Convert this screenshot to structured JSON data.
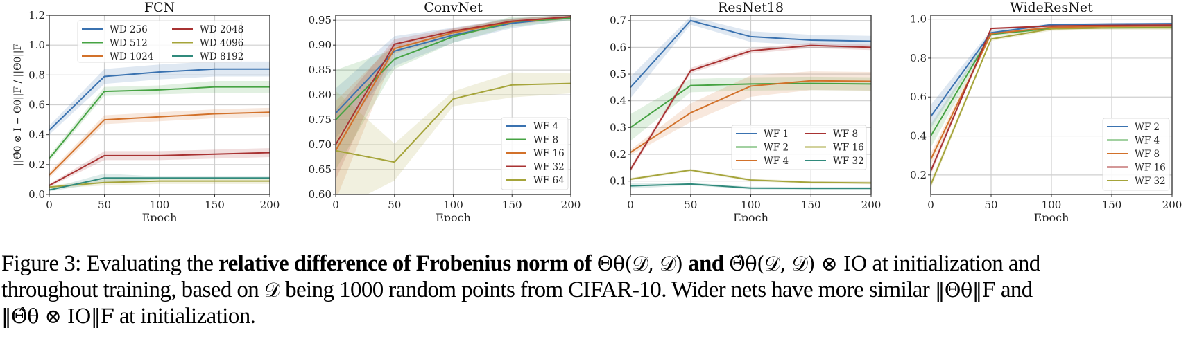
{
  "figure": {
    "caption": {
      "label": "Figure 3:",
      "line1_prefix": "Evaluating the",
      "line1_bold1": "relative difference of Frobenius norm of",
      "line1_math1": "Θθ(𝒟, 𝒟)",
      "line1_bold2": "and",
      "line1_math2": "Θ̂θ(𝒟, 𝒟) ⊗ IO",
      "line1_suffix": "at initialization and",
      "line2_prefix": "throughout training, based on",
      "line2_math1": "𝒟",
      "line2_middle": "being 1000 random points from CIFAR-10.  Wider nets have more similar",
      "line2_math2": "‖Θθ‖F",
      "line2_suffix": "and",
      "line3_math": "‖Θ̂θ ⊗ IO‖F",
      "line3_suffix": "at initialization."
    }
  },
  "chart_data": [
    {
      "type": "line",
      "title": "FCN",
      "xlabel": "Epoch",
      "ylabel": "||Θ̂θ ⊗ I − Θθ||F / ||Θθ||F",
      "xlim": [
        0,
        200
      ],
      "ylim": [
        0.0,
        1.2
      ],
      "xticks": [
        0,
        50,
        100,
        150,
        200
      ],
      "yticks": [
        0.0,
        0.2,
        0.4,
        0.6,
        0.8,
        1.0,
        1.2
      ],
      "ytick_labels": [
        "0.0",
        "0.2",
        "0.4",
        "0.6",
        "0.8",
        "1.0",
        "1.2"
      ],
      "grid": true,
      "legend_placement": "top-center",
      "legend_columns": 2,
      "x": [
        0,
        50,
        100,
        150,
        200
      ],
      "series": [
        {
          "name": "WD 256",
          "color": "#3a72b0",
          "values": [
            0.43,
            0.79,
            0.82,
            0.84,
            0.84
          ],
          "band": [
            0.03,
            0.05,
            0.05,
            0.05,
            0.05
          ]
        },
        {
          "name": "WD 512",
          "color": "#46a343",
          "values": [
            0.24,
            0.69,
            0.7,
            0.72,
            0.72
          ],
          "band": [
            0.02,
            0.03,
            0.03,
            0.04,
            0.04
          ]
        },
        {
          "name": "WD 1024",
          "color": "#d2712a",
          "values": [
            0.13,
            0.5,
            0.52,
            0.54,
            0.55
          ],
          "band": [
            0.02,
            0.03,
            0.03,
            0.03,
            0.03
          ]
        },
        {
          "name": "WD 2048",
          "color": "#a83232",
          "values": [
            0.06,
            0.26,
            0.26,
            0.27,
            0.28
          ],
          "band": [
            0.01,
            0.03,
            0.03,
            0.03,
            0.03
          ]
        },
        {
          "name": "WD 4096",
          "color": "#a5a43a",
          "values": [
            0.05,
            0.08,
            0.09,
            0.09,
            0.09
          ],
          "band": [
            0.01,
            0.02,
            0.02,
            0.02,
            0.02
          ]
        },
        {
          "name": "WD 8192",
          "color": "#308a7c",
          "values": [
            0.03,
            0.11,
            0.11,
            0.11,
            0.11
          ],
          "band": [
            0.01,
            0.03,
            0.01,
            0.01,
            0.01
          ]
        }
      ]
    },
    {
      "type": "line",
      "title": "ConvNet",
      "xlabel": "Epoch",
      "ylabel": "",
      "xlim": [
        0,
        200
      ],
      "ylim": [
        0.6,
        0.96
      ],
      "xticks": [
        0,
        50,
        100,
        150,
        200
      ],
      "yticks": [
        0.6,
        0.65,
        0.7,
        0.75,
        0.8,
        0.85,
        0.9,
        0.95
      ],
      "ytick_labels": [
        "0.60",
        "0.65",
        "0.70",
        "0.75",
        "0.80",
        "0.85",
        "0.90",
        "0.95"
      ],
      "grid": true,
      "legend_placement": "lower-right",
      "legend_columns": 1,
      "x": [
        0,
        50,
        100,
        150,
        200
      ],
      "series": [
        {
          "name": "WF 4",
          "color": "#3a72b0",
          "values": [
            0.763,
            0.888,
            0.92,
            0.944,
            0.956
          ],
          "band": [
            0.05,
            0.03,
            0.015,
            0.01,
            0.005
          ]
        },
        {
          "name": "WF 8",
          "color": "#46a343",
          "values": [
            0.75,
            0.872,
            0.917,
            0.947,
            0.954
          ],
          "band": [
            0.1,
            0.02,
            0.012,
            0.01,
            0.005
          ]
        },
        {
          "name": "WF 16",
          "color": "#d2712a",
          "values": [
            0.688,
            0.893,
            0.925,
            0.947,
            0.957
          ],
          "band": [
            0.1,
            0.01,
            0.008,
            0.006,
            0.004
          ]
        },
        {
          "name": "WF 32",
          "color": "#a83232",
          "values": [
            0.7,
            0.902,
            0.928,
            0.948,
            0.957
          ],
          "band": [
            0.07,
            0.01,
            0.006,
            0.005,
            0.004
          ]
        },
        {
          "name": "WF 64",
          "color": "#a5a43a",
          "values": [
            0.688,
            0.665,
            0.792,
            0.82,
            0.823
          ],
          "band": [
            0.12,
            0.037,
            0.015,
            0.025,
            0.02
          ]
        }
      ]
    },
    {
      "type": "line",
      "title": "ResNet18",
      "xlabel": "Epoch",
      "ylabel": "",
      "xlim": [
        0,
        200
      ],
      "ylim": [
        0.05,
        0.72
      ],
      "xticks": [
        0,
        50,
        100,
        150,
        200
      ],
      "yticks": [
        0.1,
        0.2,
        0.3,
        0.4,
        0.5,
        0.6,
        0.7
      ],
      "ytick_labels": [
        "0.1",
        "0.2",
        "0.3",
        "0.4",
        "0.5",
        "0.6",
        "0.7"
      ],
      "grid": true,
      "legend_placement": "lower-right",
      "legend_columns": 2,
      "x": [
        0,
        50,
        100,
        150,
        200
      ],
      "series": [
        {
          "name": "WF 1",
          "color": "#3a72b0",
          "values": [
            0.45,
            0.7,
            0.64,
            0.627,
            0.623
          ],
          "band": [
            0.04,
            0.015,
            0.02,
            0.02,
            0.02
          ]
        },
        {
          "name": "WF 2",
          "color": "#46a343",
          "values": [
            0.3,
            0.457,
            0.463,
            0.465,
            0.463
          ],
          "band": [
            0.05,
            0.025,
            0.025,
            0.025,
            0.025
          ]
        },
        {
          "name": "WF 4",
          "color": "#d2712a",
          "values": [
            0.207,
            0.355,
            0.455,
            0.475,
            0.473
          ],
          "band": [
            0.01,
            0.035,
            0.04,
            0.035,
            0.035
          ]
        },
        {
          "name": "WF 8",
          "color": "#a83232",
          "values": [
            0.143,
            0.513,
            0.587,
            0.607,
            0.6
          ],
          "band": [
            0.01,
            0.01,
            0.01,
            0.01,
            0.01
          ]
        },
        {
          "name": "WF 16",
          "color": "#a5a43a",
          "values": [
            0.107,
            0.141,
            0.104,
            0.095,
            0.093
          ],
          "band": [
            0.005,
            0.005,
            0.005,
            0.005,
            0.005
          ]
        },
        {
          "name": "WF 32",
          "color": "#308a7c",
          "values": [
            0.082,
            0.089,
            0.074,
            0.073,
            0.073
          ],
          "band": [
            0.01,
            0.005,
            0.005,
            0.005,
            0.005
          ]
        }
      ]
    },
    {
      "type": "line",
      "title": "WideResNet",
      "xlabel": "Epoch",
      "ylabel": "",
      "xlim": [
        0,
        200
      ],
      "ylim": [
        0.1,
        1.02
      ],
      "xticks": [
        0,
        50,
        100,
        150,
        200
      ],
      "yticks": [
        0.2,
        0.4,
        0.6,
        0.8,
        1.0
      ],
      "ytick_labels": [
        "0.2",
        "0.4",
        "0.6",
        "0.8",
        "1.0"
      ],
      "grid": true,
      "legend_placement": "lower-right",
      "legend_columns": 1,
      "x": [
        0,
        50,
        100,
        150,
        200
      ],
      "series": [
        {
          "name": "WF 2",
          "color": "#3a72b0",
          "values": [
            0.5,
            0.93,
            0.972,
            0.975,
            0.977
          ],
          "band": [
            0.06,
            0.015,
            0.005,
            0.005,
            0.005
          ]
        },
        {
          "name": "WF 4",
          "color": "#46a343",
          "values": [
            0.4,
            0.922,
            0.952,
            0.955,
            0.957
          ],
          "band": [
            0.06,
            0.01,
            0.005,
            0.005,
            0.005
          ]
        },
        {
          "name": "WF 8",
          "color": "#d2712a",
          "values": [
            0.28,
            0.925,
            0.958,
            0.963,
            0.965
          ],
          "band": [
            0.03,
            0.01,
            0.005,
            0.005,
            0.005
          ]
        },
        {
          "name": "WF 16",
          "color": "#a83232",
          "values": [
            0.22,
            0.952,
            0.965,
            0.968,
            0.97
          ],
          "band": [
            0.02,
            0.005,
            0.005,
            0.005,
            0.005
          ]
        },
        {
          "name": "WF 32",
          "color": "#a5a43a",
          "values": [
            0.15,
            0.898,
            0.95,
            0.955,
            0.955
          ],
          "band": [
            0.02,
            0.01,
            0.01,
            0.01,
            0.01
          ]
        }
      ]
    }
  ]
}
